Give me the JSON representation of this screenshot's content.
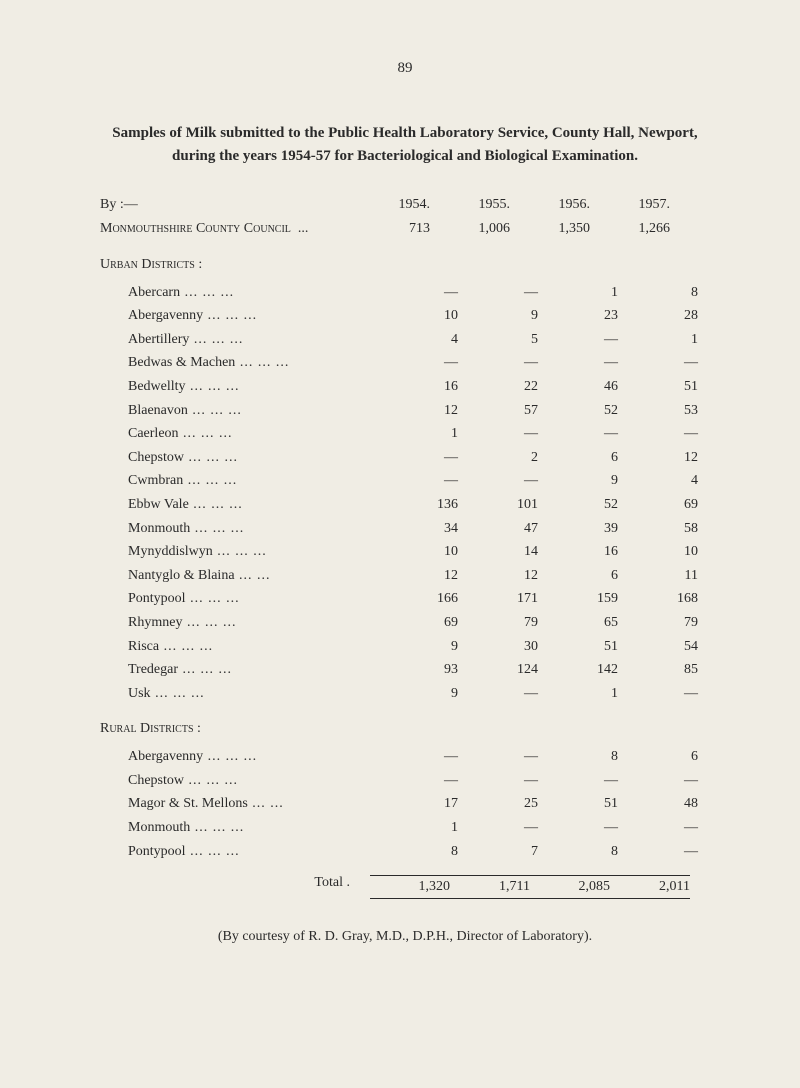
{
  "page_number": "89",
  "title": "Samples of Milk submitted to the Public Health Laboratory Service, County Hall, Newport, during the years 1954-57 for Bacteriological and Biological Examination.",
  "years": [
    "1954.",
    "1955.",
    "1956.",
    "1957."
  ],
  "by_label": "By :—",
  "council_row": {
    "label": "Monmouthshire County Council",
    "values": [
      "713",
      "1,006",
      "1,350",
      "1,266"
    ]
  },
  "urban_header": "Urban Districts :",
  "urban_rows": [
    {
      "label": "Abercarn",
      "values": [
        "—",
        "—",
        "1",
        "8"
      ]
    },
    {
      "label": "Abergavenny",
      "values": [
        "10",
        "9",
        "23",
        "28"
      ]
    },
    {
      "label": "Abertillery",
      "values": [
        "4",
        "5",
        "—",
        "1"
      ]
    },
    {
      "label": "Bedwas & Machen",
      "values": [
        "—",
        "—",
        "—",
        "—"
      ]
    },
    {
      "label": "Bedwellty",
      "values": [
        "16",
        "22",
        "46",
        "51"
      ]
    },
    {
      "label": "Blaenavon",
      "values": [
        "12",
        "57",
        "52",
        "53"
      ]
    },
    {
      "label": "Caerleon",
      "values": [
        "1",
        "—",
        "—",
        "—"
      ]
    },
    {
      "label": "Chepstow",
      "values": [
        "—",
        "2",
        "6",
        "12"
      ]
    },
    {
      "label": "Cwmbran",
      "values": [
        "—",
        "—",
        "9",
        "4"
      ]
    },
    {
      "label": "Ebbw Vale",
      "values": [
        "136",
        "101",
        "52",
        "69"
      ]
    },
    {
      "label": "Monmouth",
      "values": [
        "34",
        "47",
        "39",
        "58"
      ]
    },
    {
      "label": "Mynyddislwyn",
      "values": [
        "10",
        "14",
        "16",
        "10"
      ]
    },
    {
      "label": "Nantyglo & Blaina",
      "values": [
        "12",
        "12",
        "6",
        "11"
      ]
    },
    {
      "label": "Pontypool",
      "values": [
        "166",
        "171",
        "159",
        "168"
      ]
    },
    {
      "label": "Rhymney",
      "values": [
        "69",
        "79",
        "65",
        "79"
      ]
    },
    {
      "label": "Risca",
      "values": [
        "9",
        "30",
        "51",
        "54"
      ]
    },
    {
      "label": "Tredegar",
      "values": [
        "93",
        "124",
        "142",
        "85"
      ]
    },
    {
      "label": "Usk",
      "values": [
        "9",
        "—",
        "1",
        "—"
      ]
    }
  ],
  "rural_header": "Rural Districts :",
  "rural_rows": [
    {
      "label": "Abergavenny",
      "values": [
        "—",
        "—",
        "8",
        "6"
      ]
    },
    {
      "label": "Chepstow",
      "values": [
        "—",
        "—",
        "—",
        "—"
      ]
    },
    {
      "label": "Magor & St. Mellons",
      "values": [
        "17",
        "25",
        "51",
        "48"
      ]
    },
    {
      "label": "Monmouth",
      "values": [
        "1",
        "—",
        "—",
        "—"
      ]
    },
    {
      "label": "Pontypool",
      "values": [
        "8",
        "7",
        "8",
        "—"
      ]
    }
  ],
  "total_label": "Total .",
  "total_values": [
    "1,320",
    "1,711",
    "2,085",
    "2,011"
  ],
  "footer": "(By courtesy of R. D. Gray, M.D., D.P.H., Director of Laboratory)."
}
